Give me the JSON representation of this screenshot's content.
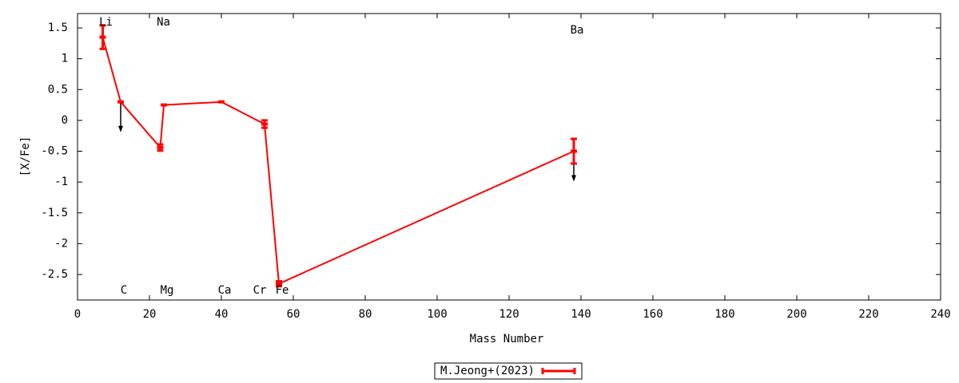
{
  "chart_data": {
    "type": "errorline",
    "xlabel": "Mass Number",
    "ylabel": "[X/Fe]",
    "xlim": [
      0,
      240
    ],
    "xticks": [
      0,
      20,
      40,
      60,
      80,
      100,
      120,
      140,
      160,
      180,
      200,
      220,
      240
    ],
    "ylim": [
      -2.914,
      1.733
    ],
    "yticks": [
      1.5,
      1,
      0.5,
      0,
      -0.5,
      -1,
      -1.5,
      -2,
      -2.5
    ],
    "grid": false,
    "legend": "bottom",
    "series": [
      {
        "name": "M.Jeong+(2023)",
        "color": "#ff0000",
        "labels": [
          "Li",
          "C",
          "Na",
          "Mg",
          "Ca",
          "Cr",
          "Fe",
          "Ba"
        ],
        "x": [
          7,
          12,
          23,
          24,
          40,
          52,
          56,
          138
        ],
        "values": [
          1.35,
          0.3,
          -0.44,
          0.25,
          0.3,
          -0.06,
          -2.65,
          -0.5
        ],
        "errors": [
          0.19,
          0,
          0.05,
          0,
          0,
          0.06,
          0.04,
          0.2
        ],
        "upper_limit": [
          false,
          true,
          false,
          false,
          false,
          false,
          false,
          true
        ]
      }
    ]
  }
}
